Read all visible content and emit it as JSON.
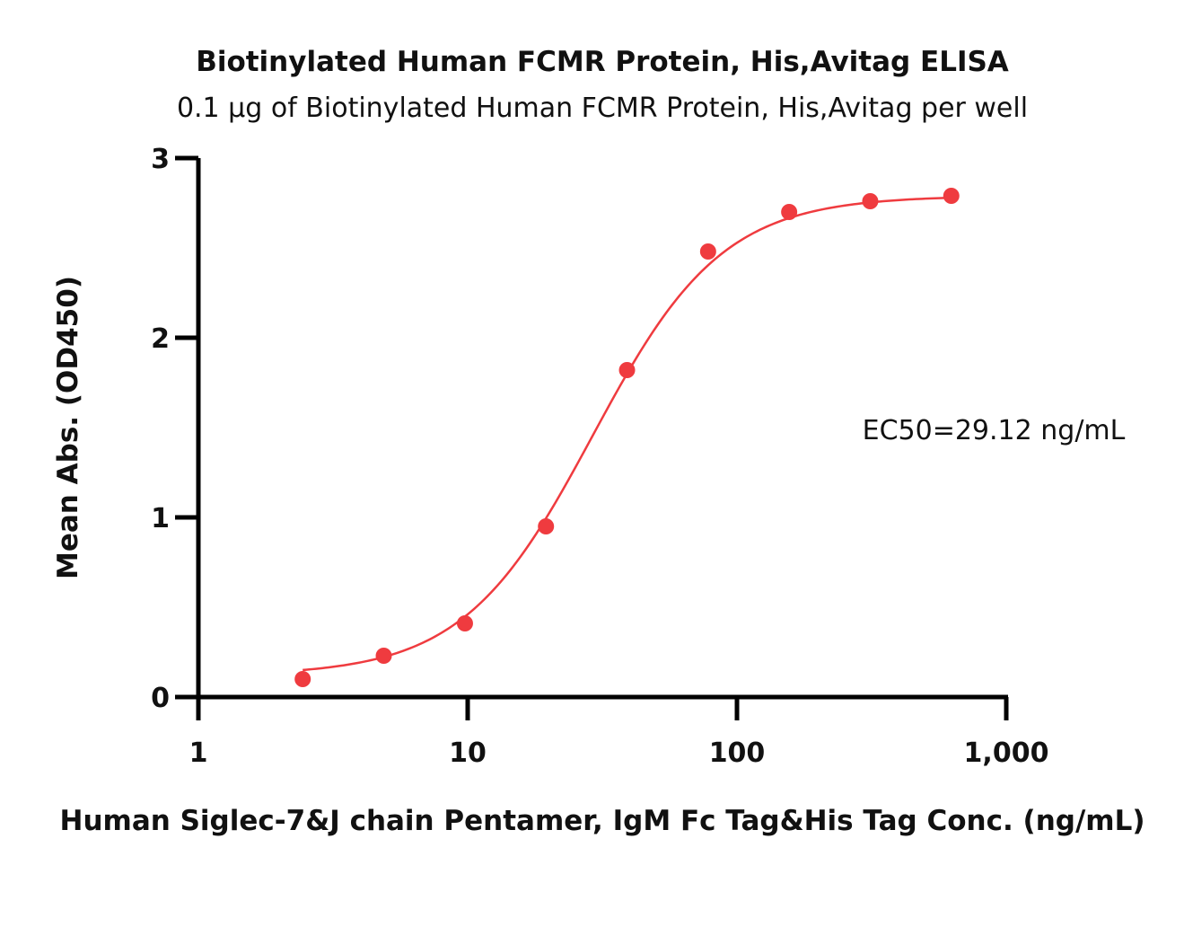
{
  "chart_data": {
    "type": "scatter",
    "title": "Biotinylated Human FCMR Protein, His,Avitag ELISA",
    "subtitle": "0.1 µg of Biotinylated Human FCMR Protein, His,Avitag per well",
    "xlabel": "Human Siglec-7&J chain Pentamer, IgM Fc Tag&His Tag Conc. (ng/mL)",
    "ylabel": "Mean Abs. (OD450)",
    "x_scale": "log",
    "xlim": [
      1,
      1000
    ],
    "ylim": [
      0,
      3
    ],
    "x_ticks": [
      1,
      10,
      100,
      1000
    ],
    "x_tick_labels": [
      "1",
      "10",
      "100",
      "1,000"
    ],
    "y_ticks": [
      0,
      1,
      2,
      3
    ],
    "y_tick_labels": [
      "0",
      "1",
      "2",
      "3"
    ],
    "grid": false,
    "series": [
      {
        "x": [
          2.44,
          4.88,
          9.77,
          19.53,
          39.06,
          78.13,
          156.25,
          312.5,
          625
        ],
        "y": [
          0.1,
          0.23,
          0.41,
          0.95,
          1.82,
          2.48,
          2.7,
          2.76,
          2.79
        ],
        "color": "#ef3b3f"
      }
    ],
    "fit": {
      "model": "4PL",
      "bottom": 0.12,
      "top": 2.79,
      "ec50": 29.12,
      "hill": 1.8
    },
    "annotations": [
      "EC50=29.12 ng/mL"
    ]
  }
}
